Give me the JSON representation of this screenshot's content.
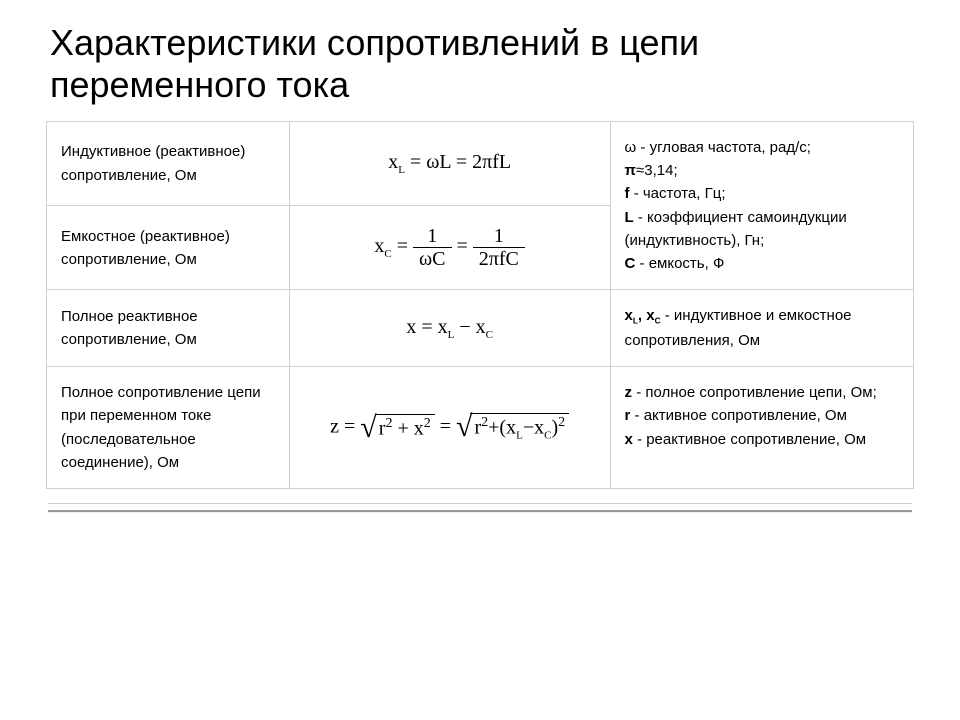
{
  "title": "Характеристики сопротивлений в цепи переменного тока",
  "rows": [
    {
      "desc": "Индуктивное (реактивное) сопротивление, Ом",
      "formula_html": "x<sub>L</sub> = &#969;L = 2&#960;fL",
      "notes_html": "&#969; - угловая частота, рад/с;<br><b>&#960;</b>&#8776;3,14;<br><b>f</b> - частота, Гц;<br><b>L</b> - коэффициент самоиндукции (индуктивность), Гн;<br><b>C</b> - емкость, Ф",
      "notes_rowspan": 2
    },
    {
      "desc": "Емкостное (реактивное) сопротивление, Ом",
      "formula_html": "x<sub>C</sub> = <span class=\"frac\"><span class=\"n\">1</span><span class=\"d\">&#969;C</span></span> = <span class=\"frac\"><span class=\"n\">1</span><span class=\"d\">2&#960;fC</span></span>",
      "notes_rowspan": 0
    },
    {
      "desc": "Полное реактивное сопротивление, Ом",
      "formula_html": "x = x<sub>L</sub> &#8722; x<sub>C</sub>",
      "notes_html": "<b>x<sub>L</sub>, x<sub>C</sub></b> - индуктивное и емкостное сопротивления, Ом",
      "notes_rowspan": 1
    },
    {
      "desc": "Полное сопротивление цепи при переменном токе (последовательное соединение), Ом",
      "formula_html": "z = <span class=\"sqrt\"><span class=\"rad\">&#8730;</span><span class=\"sqc\">r<sup>2</sup> + x<sup>2</sup></span></span> = <span class=\"sqrt\"><span class=\"rad\">&#8730;</span><span class=\"sqc\">r<sup>2</sup>+(x<sub>L</sub>&#8722;x<sub>C</sub>)<sup>2</sup></span></span>",
      "notes_html": "<b>z</b> - полное сопротивление цепи, Ом;<br><b>r</b> - активное сопротивление, Ом<br><b>x</b> - реактивное сопротивление, Ом",
      "notes_rowspan": 1
    }
  ]
}
